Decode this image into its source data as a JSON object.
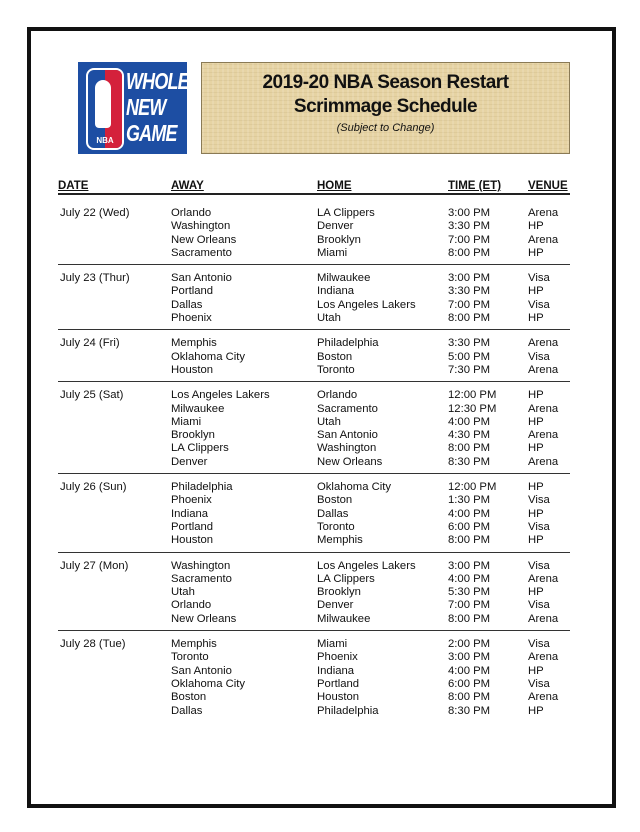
{
  "logo": {
    "text": [
      "WHOLE",
      "NEW",
      "GAME"
    ],
    "badge": "NBA"
  },
  "title": {
    "line1": "2019-20 NBA Season Restart",
    "line2": "Scrimmage Schedule",
    "note": "(Subject to Change)"
  },
  "headers": {
    "date": "DATE",
    "away": "AWAY",
    "home": "HOME",
    "time": "TIME (ET)",
    "venue": "VENUE"
  },
  "groups": [
    {
      "date": "July 22 (Wed)",
      "games": [
        [
          "Orlando",
          "LA Clippers",
          "3:00 PM",
          "Arena"
        ],
        [
          "Washington",
          "Denver",
          "3:30 PM",
          "HP"
        ],
        [
          "New Orleans",
          "Brooklyn",
          "7:00 PM",
          "Arena"
        ],
        [
          "Sacramento",
          "Miami",
          "8:00 PM",
          "HP"
        ]
      ]
    },
    {
      "date": "July 23 (Thur)",
      "games": [
        [
          "San Antonio",
          "Milwaukee",
          "3:00 PM",
          "Visa"
        ],
        [
          "Portland",
          "Indiana",
          "3:30 PM",
          "HP"
        ],
        [
          "Dallas",
          "Los Angeles Lakers",
          "7:00 PM",
          "Visa"
        ],
        [
          "Phoenix",
          "Utah",
          "8:00 PM",
          "HP"
        ]
      ]
    },
    {
      "date": "July 24 (Fri)",
      "games": [
        [
          "Memphis",
          "Philadelphia",
          "3:30 PM",
          "Arena"
        ],
        [
          "Oklahoma City",
          "Boston",
          "5:00 PM",
          "Visa"
        ],
        [
          "Houston",
          "Toronto",
          "7:30 PM",
          "Arena"
        ]
      ]
    },
    {
      "date": "July 25 (Sat)",
      "games": [
        [
          "Los Angeles Lakers",
          "Orlando",
          "12:00 PM",
          "HP"
        ],
        [
          "Milwaukee",
          "Sacramento",
          "12:30 PM",
          "Arena"
        ],
        [
          "Miami",
          "Utah",
          "4:00 PM",
          "HP"
        ],
        [
          "Brooklyn",
          "San Antonio",
          "4:30 PM",
          "Arena"
        ],
        [
          "LA Clippers",
          "Washington",
          "8:00 PM",
          "HP"
        ],
        [
          "Denver",
          "New Orleans",
          "8:30 PM",
          "Arena"
        ]
      ]
    },
    {
      "date": "July 26 (Sun)",
      "games": [
        [
          "Philadelphia",
          "Oklahoma City",
          "12:00 PM",
          "HP"
        ],
        [
          "Phoenix",
          "Boston",
          "1:30 PM",
          "Visa"
        ],
        [
          "Indiana",
          "Dallas",
          "4:00 PM",
          "HP"
        ],
        [
          "Portland",
          "Toronto",
          "6:00 PM",
          "Visa"
        ],
        [
          "Houston",
          "Memphis",
          "8:00 PM",
          "HP"
        ]
      ]
    },
    {
      "date": "July 27 (Mon)",
      "games": [
        [
          "Washington",
          "Los Angeles Lakers",
          "3:00 PM",
          "Visa"
        ],
        [
          "Sacramento",
          "LA Clippers",
          "4:00 PM",
          "Arena"
        ],
        [
          "Utah",
          "Brooklyn",
          "5:30 PM",
          "HP"
        ],
        [
          "Orlando",
          "Denver",
          "7:00 PM",
          "Visa"
        ],
        [
          "New Orleans",
          "Milwaukee",
          "8:00 PM",
          "Arena"
        ]
      ]
    },
    {
      "date": "July 28 (Tue)",
      "games": [
        [
          "Memphis",
          "Miami",
          "2:00 PM",
          "Visa"
        ],
        [
          "Toronto",
          "Phoenix",
          "3:00 PM",
          "Arena"
        ],
        [
          "San Antonio",
          "Indiana",
          "4:00 PM",
          "HP"
        ],
        [
          "Oklahoma City",
          "Portland",
          "6:00 PM",
          "Visa"
        ],
        [
          "Boston",
          "Houston",
          "8:00 PM",
          "Arena"
        ],
        [
          "Dallas",
          "Philadelphia",
          "8:30 PM",
          "HP"
        ]
      ]
    }
  ]
}
